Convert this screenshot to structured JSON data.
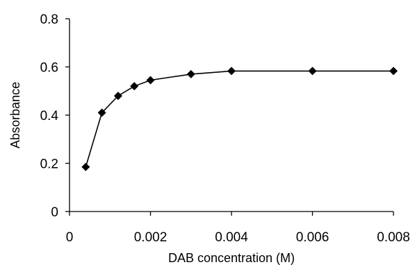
{
  "chart_data": {
    "type": "line",
    "title": "",
    "xlabel": "DAB concentration (M)",
    "ylabel": "Absorbance",
    "xlim": [
      0,
      0.008
    ],
    "ylim": [
      0,
      0.8
    ],
    "x_ticks": [
      "0",
      "0.002",
      "0.004",
      "0.006",
      "0.008"
    ],
    "y_ticks": [
      "0",
      "0.2",
      "0.4",
      "0.6",
      "0.8"
    ],
    "grid": false,
    "legend": "none",
    "marker": "diamond",
    "colors": {
      "line": "#000000",
      "marker": "#000000",
      "background": "#ffffff"
    },
    "series": [
      {
        "x": [
          0.0004,
          0.0008,
          0.0012,
          0.0016,
          0.002,
          0.003,
          0.004,
          0.006,
          0.008
        ],
        "y": [
          0.185,
          0.41,
          0.48,
          0.52,
          0.545,
          0.57,
          0.583,
          0.583,
          0.583
        ]
      }
    ]
  }
}
